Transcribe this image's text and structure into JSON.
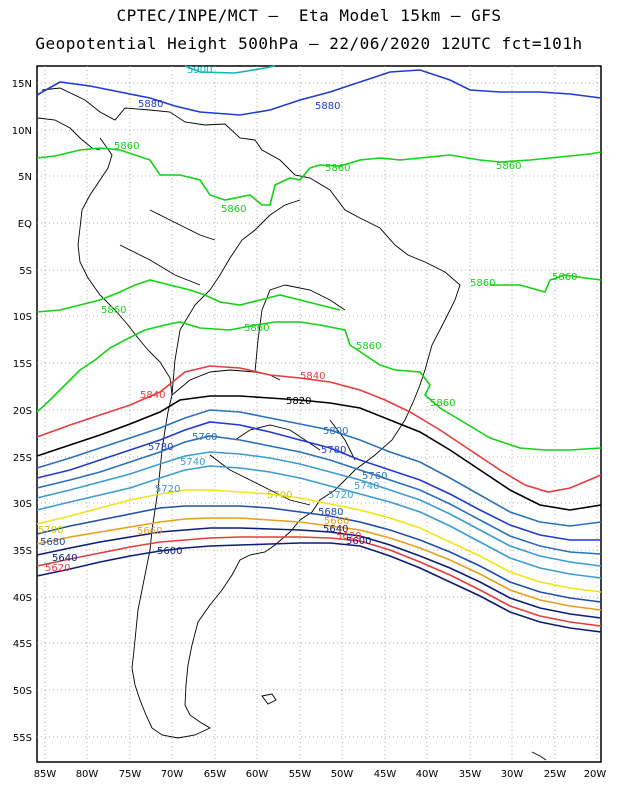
{
  "title": {
    "line1": "CPTEC/INPE/MCT –  Eta Model 15km – GFS",
    "line2": "Geopotential Height 500hPa – 22/06/2020 12UTC fct=101h"
  },
  "axes": {
    "lat_labels": [
      "15N",
      "10N",
      "5N",
      "EQ",
      "5S",
      "10S",
      "15S",
      "20S",
      "25S",
      "30S",
      "35S",
      "40S",
      "45S",
      "50S",
      "55S"
    ],
    "lon_labels": [
      "85W",
      "80W",
      "75W",
      "70W",
      "65W",
      "60W",
      "55W",
      "50W",
      "45W",
      "40W",
      "35W",
      "30W",
      "25W",
      "20W"
    ]
  },
  "contours": [
    {
      "value": "5900",
      "color": "#14b4b4",
      "labels": [
        "5900"
      ]
    },
    {
      "value": "5880",
      "color": "#1e3cd2",
      "labels": [
        "5880",
        "5880"
      ]
    },
    {
      "value": "5860",
      "color": "#14d214",
      "labels": [
        "5860",
        "5860",
        "5860",
        "5860",
        "5860",
        "5860",
        "5860",
        "5860",
        "5860"
      ]
    },
    {
      "value": "5840",
      "color": "#e63c3c",
      "labels": [
        "5840",
        "5840",
        "5840"
      ]
    },
    {
      "value": "5820",
      "color": "#000000",
      "labels": [
        "5820"
      ]
    },
    {
      "value": "5800",
      "color": "#2a72b8",
      "labels": [
        "5800"
      ]
    },
    {
      "value": "5780",
      "color": "#1e3cd2",
      "labels": [
        "5780",
        "5780"
      ]
    },
    {
      "value": "5760",
      "color": "#2a72b8",
      "labels": [
        "5760",
        "5760"
      ]
    },
    {
      "value": "5740",
      "color": "#3c9cd0",
      "labels": [
        "5740",
        "5740"
      ]
    },
    {
      "value": "5720",
      "color": "#3c9cd0",
      "labels": [
        "5720",
        "5720"
      ]
    },
    {
      "value": "5700",
      "color": "#f0e614",
      "labels": [
        "5700",
        "5700"
      ]
    },
    {
      "value": "5680",
      "color": "#1e50aa",
      "labels": [
        "5680",
        "5680"
      ]
    },
    {
      "value": "5660",
      "color": "#e6a01e",
      "labels": [
        "5660",
        "5660"
      ]
    },
    {
      "value": "5640",
      "color": "#0a1e78",
      "labels": [
        "5640",
        "5640"
      ]
    },
    {
      "value": "5620",
      "color": "#e63c3c",
      "labels": [
        "5620",
        "5620"
      ]
    },
    {
      "value": "5600",
      "color": "#0a1e78",
      "labels": [
        "5600",
        "5600"
      ]
    }
  ]
}
